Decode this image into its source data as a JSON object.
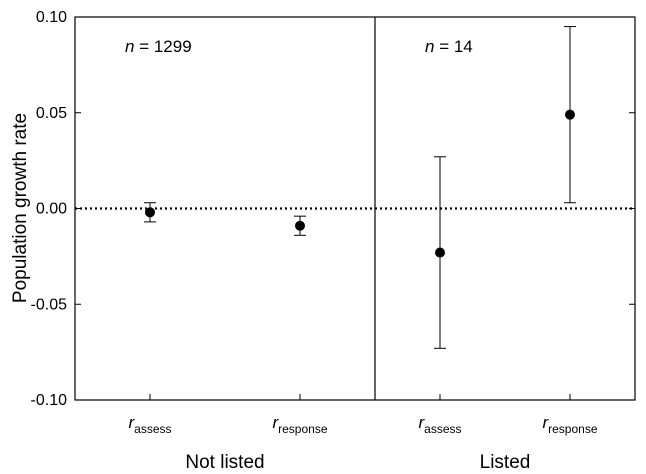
{
  "chart_data": {
    "type": "scatter",
    "ylabel": "Population growth rate",
    "ylim": [
      -0.1,
      0.1
    ],
    "yticks": [
      "-0.10",
      "-0.05",
      "0.00",
      "0.05",
      "0.10"
    ],
    "reference_line": {
      "y": 0,
      "style": "dotted"
    },
    "grid": false,
    "panels": [
      {
        "label": "Not listed",
        "n_prefix": "n",
        "n_text": " = 1299",
        "points": [
          {
            "base": "r",
            "sub": "assess",
            "y": -0.002,
            "lower": -0.007,
            "upper": 0.003
          },
          {
            "base": "r",
            "sub": "response",
            "y": -0.009,
            "lower": -0.014,
            "upper": -0.004
          }
        ]
      },
      {
        "label": "Listed",
        "n_prefix": "n",
        "n_text": " = 14",
        "points": [
          {
            "base": "r",
            "sub": "assess",
            "y": -0.023,
            "lower": -0.073,
            "upper": 0.027
          },
          {
            "base": "r",
            "sub": "response",
            "y": 0.049,
            "lower": 0.003,
            "upper": 0.095
          }
        ]
      }
    ]
  }
}
